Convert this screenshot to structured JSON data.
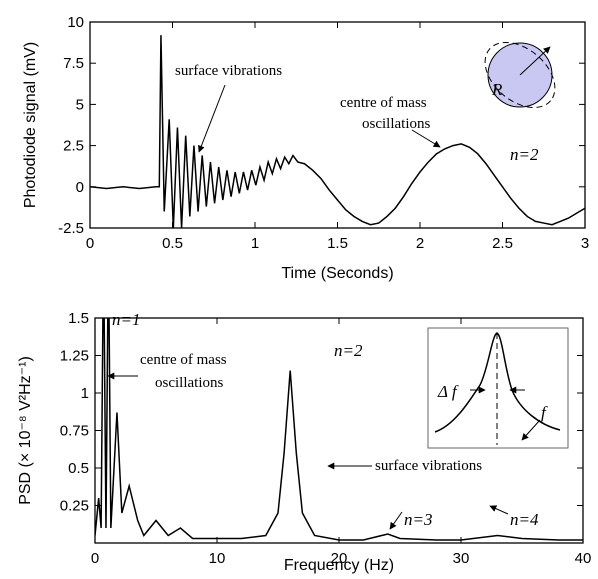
{
  "chart_data": [
    {
      "type": "line",
      "xlabel": "Time (Seconds)",
      "ylabel": "Photodiode signal (mV)",
      "color": "#000000",
      "x": [
        0,
        0.1,
        0.2,
        0.3,
        0.4,
        0.42,
        0.43,
        0.45,
        0.48,
        0.505,
        0.53,
        0.555,
        0.58,
        0.605,
        0.63,
        0.655,
        0.68,
        0.705,
        0.73,
        0.755,
        0.78,
        0.805,
        0.83,
        0.855,
        0.88,
        0.905,
        0.93,
        0.955,
        0.98,
        1.005,
        1.03,
        1.055,
        1.08,
        1.105,
        1.13,
        1.155,
        1.18,
        1.205,
        1.23,
        1.26,
        1.3,
        1.35,
        1.4,
        1.45,
        1.5,
        1.55,
        1.6,
        1.65,
        1.7,
        1.75,
        1.8,
        1.85,
        1.9,
        1.95,
        2.0,
        2.05,
        2.1,
        2.15,
        2.2,
        2.25,
        2.3,
        2.35,
        2.4,
        2.45,
        2.5,
        2.55,
        2.6,
        2.65,
        2.7,
        2.75,
        2.8,
        2.85,
        2.9,
        2.95,
        3.0
      ],
      "values": [
        0,
        -0.1,
        0,
        -0.1,
        0,
        0,
        9.2,
        -1.5,
        4.1,
        -2.5,
        3.6,
        -2.5,
        3.1,
        -1.8,
        2.5,
        -1.5,
        1.9,
        -1.2,
        1.5,
        -1.0,
        1.2,
        -0.8,
        1.0,
        -0.6,
        0.9,
        -0.4,
        0.9,
        -0.2,
        1.0,
        0.1,
        1.2,
        0.4,
        1.5,
        0.8,
        1.7,
        1.1,
        1.8,
        1.4,
        1.9,
        1.5,
        1.4,
        1.0,
        0.5,
        -0.2,
        -0.8,
        -1.4,
        -1.8,
        -2.1,
        -2.3,
        -2.2,
        -1.8,
        -1.3,
        -0.6,
        0.2,
        0.9,
        1.5,
        2.0,
        2.3,
        2.5,
        2.6,
        2.4,
        2.0,
        1.4,
        0.7,
        0,
        -0.7,
        -1.3,
        -1.8,
        -2.1,
        -2.2,
        -2.3,
        -2.1,
        -1.9,
        -1.6,
        -1.3
      ],
      "xlim": [
        0,
        3
      ],
      "xticks": [
        0,
        0.5,
        1,
        1.5,
        2,
        2.5,
        3
      ],
      "ylim": [
        -2.5,
        10
      ],
      "yticks": [
        -2.5,
        0,
        2.5,
        5,
        7.5,
        10
      ],
      "annotations": [
        "surface vibrations",
        "centre of mass",
        "oscillations",
        "n=2",
        "R"
      ]
    },
    {
      "type": "line",
      "xlabel": "Frequency (Hz)",
      "ylabel": "PSD (× 10⁻⁸ V²Hz⁻¹)",
      "color": "#000000",
      "x": [
        0,
        0.3,
        0.5,
        0.7,
        0.9,
        1.1,
        1.3,
        1.8,
        2.2,
        2.8,
        3.5,
        4,
        5,
        6,
        7,
        8,
        10,
        12,
        14,
        15,
        15.5,
        16,
        16.5,
        17,
        18,
        20,
        22,
        24,
        25,
        28,
        30,
        33,
        35,
        38,
        40
      ],
      "values": [
        0.05,
        0.3,
        0.1,
        2.0,
        0.1,
        2.0,
        0.1,
        0.87,
        0.2,
        0.38,
        0.15,
        0.05,
        0.15,
        0.05,
        0.1,
        0.03,
        0.03,
        0.03,
        0.05,
        0.2,
        0.6,
        1.15,
        0.6,
        0.2,
        0.05,
        0.02,
        0.02,
        0.06,
        0.03,
        0.02,
        0.02,
        0.05,
        0.03,
        0.02,
        0.02
      ],
      "xlim": [
        0,
        40
      ],
      "xticks": [
        0,
        10,
        20,
        30,
        40
      ],
      "ylim": [
        0,
        1.5
      ],
      "yticks": [
        0.25,
        0.5,
        0.75,
        1,
        1.25,
        1.5
      ],
      "annotations": [
        "n=1",
        "centre of mass",
        "oscillations",
        "n=2",
        "surface vibrations",
        "n=3",
        "n=4",
        "Δ f",
        "f"
      ]
    }
  ]
}
